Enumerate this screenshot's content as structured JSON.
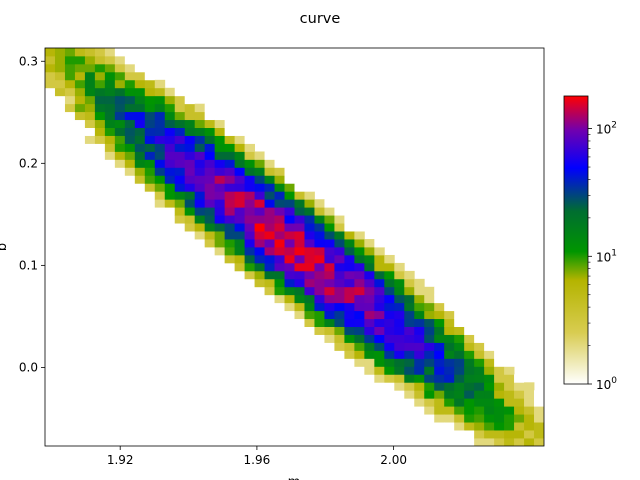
{
  "chart_data": {
    "type": "heatmap",
    "title": "curve",
    "xlabel": "m",
    "ylabel": "b",
    "xlim": [
      1.898,
      2.044
    ],
    "ylim": [
      -0.077,
      0.313
    ],
    "xticks": [
      1.92,
      1.96,
      2.0
    ],
    "xtick_labels": [
      "1.92",
      "1.96",
      "2.00"
    ],
    "yticks": [
      0.0,
      0.1,
      0.2,
      0.3
    ],
    "ytick_labels": [
      "0.0",
      "0.1",
      "0.2",
      "0.3"
    ],
    "bins": [
      50,
      50
    ],
    "density_model": {
      "mean_m": 1.97,
      "mean_b": 0.12,
      "slope_b_per_m": -2.6,
      "spread_along_m": 0.027,
      "spread_across_b": 0.022,
      "peak_count": 150
    },
    "colorbar": {
      "scale": "log",
      "range": [
        1,
        180
      ],
      "tick_labels": [
        {
          "base": "10",
          "exp": "0"
        },
        {
          "base": "10",
          "exp": "1"
        },
        {
          "base": "10",
          "exp": "2"
        }
      ],
      "tick_values": [
        1,
        10,
        100
      ],
      "colors": [
        "#ffffff",
        "#c8b400",
        "#007800",
        "#0000ff",
        "#8000a0",
        "#ff0000"
      ]
    }
  }
}
